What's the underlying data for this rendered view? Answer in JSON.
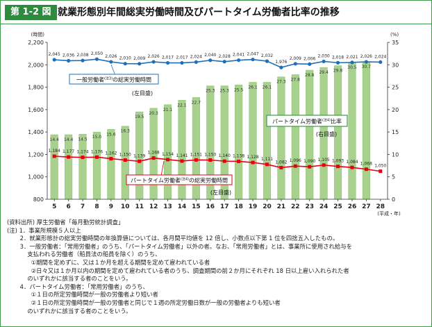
{
  "header": {
    "badge": "第 1-2 図",
    "title": "就業形態別年間総実労働時間及びパートタイム労働者比率の推移"
  },
  "colors": {
    "frame": "#3d9a48",
    "bar": "#a9d18e",
    "bar_edge": "#8cc06f",
    "general_line": "#1f6fb8",
    "part_line": "#e60012",
    "annotation_green": "#3d9a48"
  },
  "chart_data": {
    "type": "bar",
    "categories": [
      "5",
      "6",
      "7",
      "8",
      "9",
      "10",
      "11",
      "12",
      "13",
      "14",
      "15",
      "16",
      "17",
      "18",
      "19",
      "20",
      "21",
      "22",
      "23",
      "24",
      "25",
      "26",
      "27",
      "28"
    ],
    "xlabel": "(平成・年)",
    "left_axis_unit": "(時間)",
    "right_axis_unit": "(%)",
    "ylim_left": [
      800,
      2200
    ],
    "yticks_left": [
      "800",
      "1,000",
      "1,200",
      "1,400",
      "1,600",
      "1,800",
      "2,000",
      "2,200"
    ],
    "ylim_right": [
      0,
      35
    ],
    "yticks_right": [
      "0",
      "5",
      "10",
      "15",
      "20",
      "25",
      "30",
      "35"
    ],
    "grid": false,
    "series": [
      {
        "name": "パートタイム労働者比率",
        "axis": "right",
        "kind": "bar",
        "values": [
          14.4,
          14.4,
          14.5,
          15.0,
          15.6,
          16.3,
          19.5,
          20.3,
          21.1,
          22.1,
          22.7,
          25.3,
          25.3,
          25.5,
          26.1,
          26.1,
          27.3,
          27.8,
          28.8,
          29.4,
          29.8,
          30.5,
          30.7,
          null
        ],
        "labels": [
          "14.4",
          "14.4",
          "14.5",
          "15.0",
          "15.6",
          "16.3",
          "19.5",
          "20.3",
          "21.1",
          "22.1",
          "22.7",
          "25.3",
          "25.3",
          "25.5",
          "26.1",
          "26.1",
          "27.3",
          "27.8",
          "28.8",
          "29.4",
          "29.8",
          "30.5",
          "30.7",
          ""
        ]
      },
      {
        "name": "一般労働者の総実労働時間",
        "axis": "left",
        "kind": "line",
        "values": [
          2045,
          2036,
          2038,
          2050,
          2026,
          2010,
          2009,
          2026,
          2017,
          2017,
          2024,
          2040,
          2028,
          2041,
          2047,
          2032,
          1976,
          2009,
          2006,
          2030,
          2018,
          2021,
          2026,
          2024
        ],
        "labels": [
          "2,045",
          "2,036",
          "2,038",
          "2,050",
          "2,026",
          "2,010",
          "2,009",
          "2,026",
          "2,017",
          "2,017",
          "2,024",
          "2,040",
          "2,028",
          "2,041",
          "2,047",
          "2,032",
          "1,976",
          "2,009",
          "2,006",
          "2,030",
          "2,018",
          "2,021",
          "2,026",
          "2,024"
        ]
      },
      {
        "name": "パートタイム労働者の総実労働時間",
        "axis": "left",
        "kind": "line",
        "values": [
          1184,
          1177,
          1174,
          1176,
          1162,
          1150,
          1139,
          1168,
          1154,
          1141,
          1151,
          1150,
          1140,
          1138,
          1128,
          1111,
          1082,
          1096,
          1090,
          1105,
          1093,
          1084,
          1068,
          1050
        ],
        "labels": [
          "1,184",
          "1,177",
          "1,174",
          "1,176",
          "1,162",
          "1,150",
          "1,139",
          "1,168",
          "1,154",
          "1,141",
          "1,151",
          "1,150",
          "1,140",
          "1,138",
          "1,128",
          "1,111",
          "1,082",
          "1,096",
          "1,090",
          "1,105",
          "1,093",
          "1,084",
          "1,068",
          "1,050"
        ]
      }
    ],
    "annotations": {
      "general_label": "一般労働者",
      "general_sup": "(注3)",
      "general_suffix": "の総実労働時間",
      "general_axis": "(左目盛)",
      "part_label": "パートタイム労働者",
      "part_sup": "(注4)",
      "part_suffix": "の総実労働時間",
      "part_axis": "(左目盛)",
      "ratio_label": "パートタイム労働者",
      "ratio_sup": "(注4)",
      "ratio_suffix": "比率",
      "ratio_axis": "(右目盛)"
    }
  },
  "notes": [
    "(資料出所)  厚生労働省「毎月勤労統計調査」",
    "(注)  1．事業所規模５人以上",
    "       2．就業形態計の総実労働時間の年換算値については、各月間平均値を 12 倍し、小数点以下第 1 位を四捨五入したもの。",
    "       3．一般労働者：「常用労働者」のうち、「パートタイム労働者」以外の者。なお、「常用労働者」とは、事業所に使用され給与を",
    "           支払われる労働者（船員法の船員を除く）のうち、",
    "             ①期間を定めずに、又は１か月を超える期間を定めて雇われている者",
    "             ②日々又は１か月以内の期間を定めて雇われている者のうち、調査期間の前２か月にそれぞれ 18 日以上雇い入れられた者",
    "           のいずれかに該当する者のことをいう。",
    "       4．パートタイム労働者：「常用労働者」のうち、",
    "             ①１日の所定労働時間が一般の労働者より短い者",
    "             ②１日の所定労働時間が一般の労働者と同じで１週の所定労働日数が一般の労働者よりも短い者",
    "           のいずれかに該当する者のことをいう。"
  ]
}
